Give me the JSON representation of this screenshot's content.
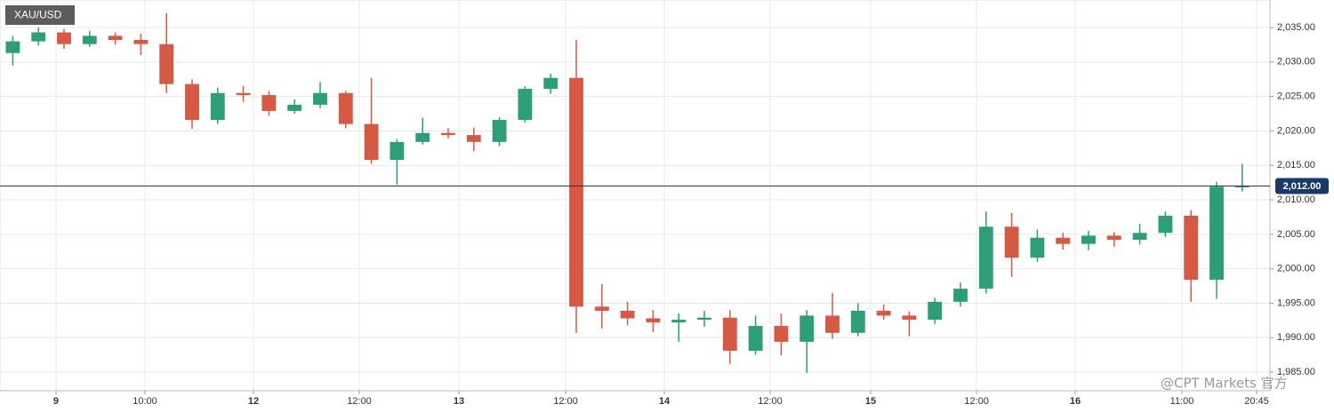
{
  "chart_data": {
    "type": "candlestick",
    "title": "XAU/USD",
    "watermark": "@CPT Markets 官方",
    "up_color": "#2e9e78",
    "down_color": "#d45a43",
    "grid": true,
    "xlim": [
      0,
      148.75
    ],
    "ylim": [
      1982.3,
      2039.0
    ],
    "yticks": [
      {
        "value": 1985,
        "label": "1,985.00"
      },
      {
        "value": 1990,
        "label": "1,990.00"
      },
      {
        "value": 1995,
        "label": "1,995.00"
      },
      {
        "value": 2000,
        "label": "2,000.00"
      },
      {
        "value": 2005,
        "label": "2,005.00"
      },
      {
        "value": 2010,
        "label": "2,010.00"
      },
      {
        "value": 2015,
        "label": "2,015.00"
      },
      {
        "value": 2020,
        "label": "2,020.00"
      },
      {
        "value": 2025,
        "label": "2,025.00"
      },
      {
        "value": 2030,
        "label": "2,030.00"
      },
      {
        "value": 2035,
        "label": "2,035.00"
      }
    ],
    "xticks": [
      {
        "value": 6.56,
        "label": "9"
      },
      {
        "value": 16.98,
        "label": "10:00"
      },
      {
        "value": 29.69,
        "label": "12"
      },
      {
        "value": 42.08,
        "label": "12:00"
      },
      {
        "value": 53.75,
        "label": "13"
      },
      {
        "value": 66.25,
        "label": "12:00"
      },
      {
        "value": 77.81,
        "label": "14"
      },
      {
        "value": 90.21,
        "label": "12:00"
      },
      {
        "value": 101.98,
        "label": "15"
      },
      {
        "value": 114.38,
        "label": "12:00"
      },
      {
        "value": 125.94,
        "label": "16"
      },
      {
        "value": 138.44,
        "label": "11:00"
      },
      {
        "value": 147.19,
        "label": "20:45"
      }
    ],
    "current_price": {
      "value": 2012,
      "label": "2,012.00"
    },
    "x": [
      1.5,
      4.5,
      7.5,
      10.5,
      13.5,
      16.5,
      19.5,
      22.5,
      25.5,
      28.5,
      31.5,
      34.5,
      37.5,
      40.5,
      43.5,
      46.5,
      49.5,
      52.5,
      55.5,
      58.5,
      61.5,
      64.5,
      67.5,
      70.5,
      73.5,
      76.5,
      79.5,
      82.5,
      85.5,
      88.5,
      91.5,
      94.5,
      97.5,
      100.5,
      103.5,
      106.5,
      109.5,
      112.5,
      115.5,
      118.5,
      121.5,
      124.5,
      127.5,
      130.5,
      133.5,
      136.5,
      139.5,
      142.5,
      145.5
    ],
    "open": [
      2031.3,
      2033.0,
      2034.3,
      2032.6,
      2033.8,
      2033.2,
      2032.6,
      2026.8,
      2021.6,
      2025.5,
      2025.2,
      2022.9,
      2023.8,
      2025.5,
      2021.0,
      2015.8,
      2018.4,
      2019.7,
      2019.4,
      2018.4,
      2021.6,
      2026.1,
      2027.7,
      1994.5,
      1993.9,
      1992.8,
      1992.2,
      1992.6,
      1992.9,
      1988.1,
      1991.7,
      1989.4,
      1993.2,
      1990.7,
      1993.9,
      1993.2,
      1992.6,
      1995.2,
      1997.1,
      2006.1,
      2001.6,
      2004.5,
      2003.6,
      2004.8,
      2004.2,
      2005.2,
      2007.7,
      1998.4,
      2011.9
    ],
    "high": [
      2033.8,
      2035.0,
      2034.8,
      2034.5,
      2034.3,
      2034.1,
      2037.1,
      2027.5,
      2026.3,
      2026.5,
      2025.8,
      2024.6,
      2027.1,
      2025.8,
      2027.7,
      2018.8,
      2021.9,
      2020.4,
      2020.5,
      2022.0,
      2026.5,
      2028.3,
      2033.2,
      1997.8,
      1995.2,
      1994.0,
      1993.5,
      1993.9,
      1994.0,
      1993.2,
      1993.5,
      1994.0,
      1996.5,
      1995.0,
      1994.8,
      1993.8,
      1995.8,
      1998.0,
      2008.3,
      2008.1,
      2005.7,
      2005.2,
      2005.5,
      2005.3,
      2006.5,
      2008.3,
      2008.5,
      2012.6,
      2015.2
    ],
    "low": [
      2029.5,
      2032.4,
      2031.9,
      2032.2,
      2032.5,
      2031.0,
      2025.5,
      2020.3,
      2021.0,
      2024.2,
      2022.2,
      2022.5,
      2023.3,
      2020.4,
      2015.2,
      2012.2,
      2018.0,
      2018.9,
      2017.1,
      2017.8,
      2021.2,
      2025.4,
      1990.7,
      1991.3,
      1991.8,
      1990.8,
      1989.4,
      1991.6,
      1986.2,
      1987.5,
      1987.4,
      1984.9,
      1989.8,
      1990.2,
      1992.6,
      1990.2,
      1992.0,
      1994.5,
      1996.4,
      1998.8,
      2001.0,
      2002.8,
      2002.7,
      2003.2,
      2003.5,
      2004.6,
      1995.2,
      1995.6,
      2011.2
    ],
    "close": [
      2033.0,
      2034.3,
      2032.6,
      2033.8,
      2033.2,
      2032.6,
      2026.8,
      2021.6,
      2025.5,
      2025.2,
      2022.9,
      2023.8,
      2025.5,
      2021.0,
      2015.8,
      2018.4,
      2019.7,
      2019.4,
      2018.4,
      2021.6,
      2026.1,
      2027.7,
      1994.5,
      1993.9,
      1992.8,
      1992.2,
      1992.6,
      1992.9,
      1988.1,
      1991.7,
      1989.4,
      1993.2,
      1990.7,
      1993.9,
      1993.2,
      1992.6,
      1995.2,
      1997.1,
      2006.1,
      2001.6,
      2004.5,
      2003.6,
      2004.8,
      2004.2,
      2005.2,
      2007.7,
      1998.4,
      2011.9,
      2012.0
    ]
  }
}
